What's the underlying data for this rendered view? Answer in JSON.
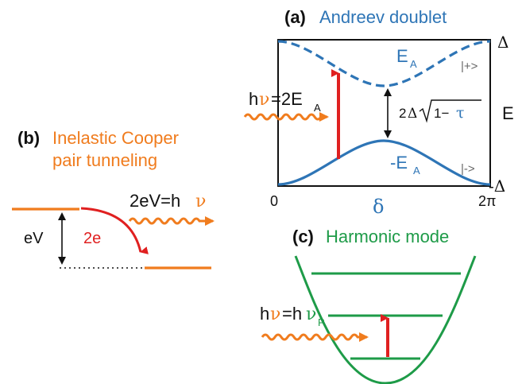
{
  "colors": {
    "blue": "#2E75B6",
    "orange": "#F07C1E",
    "green": "#1E9B48",
    "red": "#E02020",
    "black": "#111111"
  },
  "panel_a": {
    "tag": "(a)",
    "title": "Andreev doublet",
    "upper_level_label": "E",
    "upper_level_sub": "A",
    "lower_level_label": "-E",
    "lower_level_sub": "A",
    "state_plus": "|+>",
    "state_minus": "|->",
    "gap_top": "Δ",
    "gap_bottom": "-Δ",
    "y_axis_label": "E",
    "x_axis_label": "δ",
    "x_tick_start": "0",
    "x_tick_end": "2π",
    "photon_h": "h",
    "photon_nu": "ν",
    "photon_eq": "=2E",
    "photon_sub": "A",
    "splitting_pre": "2",
    "splitting_delta": "Δ",
    "splitting_root": "1−",
    "splitting_tau": "τ"
  },
  "panel_b": {
    "tag": "(b)",
    "title_line1": "Inelastic Cooper",
    "title_line2": "pair tunneling",
    "voltage_label": "eV",
    "charge_label": "2e",
    "photon_eq_pre": "2eV=h",
    "photon_nu": "ν"
  },
  "panel_c": {
    "tag": "(c)",
    "title": "Harmonic mode",
    "photon_h": "h",
    "photon_nu": "ν",
    "photon_eq": "=h",
    "photon_nu2": "ν",
    "photon_sub": "P"
  }
}
